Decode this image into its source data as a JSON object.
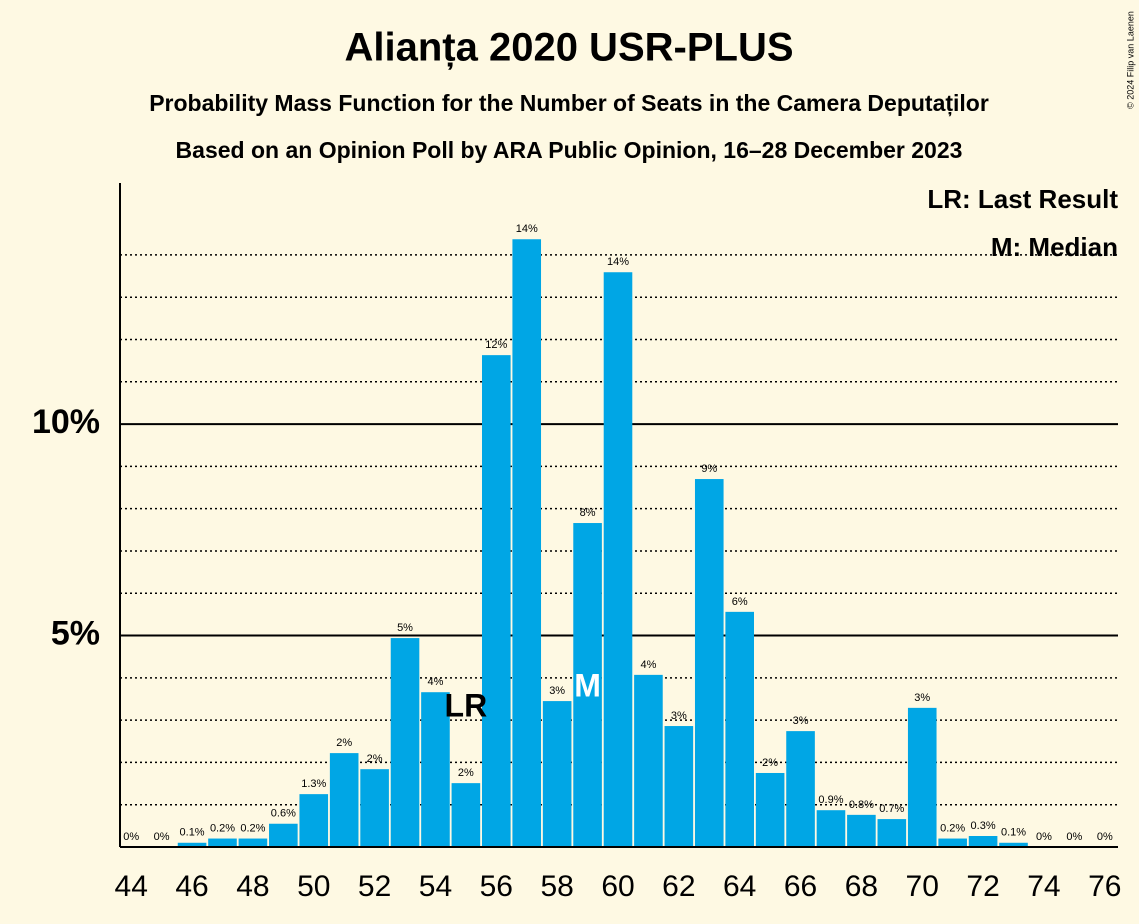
{
  "chart_data": {
    "type": "bar",
    "title": "Alianța 2020 USR-PLUS",
    "subtitle": "Probability Mass Function for the Number of Seats in the Camera Deputaților",
    "subtitle2": "Based on an Opinion Poll by ARA Public Opinion, 16–28 December 2023",
    "copyright": "© 2024 Filip van Laenen",
    "x": [
      44,
      45,
      46,
      47,
      48,
      49,
      50,
      51,
      52,
      53,
      54,
      55,
      56,
      57,
      58,
      59,
      60,
      61,
      62,
      63,
      64,
      65,
      66,
      67,
      68,
      69,
      70,
      71,
      72,
      73,
      74,
      75,
      76
    ],
    "values": [
      0,
      0,
      0.1,
      0.2,
      0.2,
      0.55,
      1.25,
      2.22,
      1.84,
      4.94,
      3.66,
      1.51,
      11.63,
      14.37,
      3.45,
      7.66,
      13.59,
      4.07,
      2.86,
      8.7,
      5.56,
      1.75,
      2.74,
      0.87,
      0.76,
      0.66,
      3.29,
      0.2,
      0.26,
      0.1,
      0,
      0,
      0
    ],
    "value_labels": [
      "0%",
      "0%",
      "0.1%",
      "0.2%",
      "0.2%",
      "0.6%",
      "1.3%",
      "2%",
      "2%",
      "5%",
      "4%",
      "2%",
      "12%",
      "14%",
      "3%",
      "8%",
      "14%",
      "4%",
      "3%",
      "9%",
      "6%",
      "2%",
      "3%",
      "0.9%",
      "0.8%",
      "0.7%",
      "3%",
      "0.2%",
      "0.3%",
      "0.1%",
      "0%",
      "0%",
      "0%"
    ],
    "color": "#00a6e5",
    "xlim": [
      43.5,
      76.5
    ],
    "xticks": [
      44,
      46,
      48,
      50,
      52,
      54,
      56,
      58,
      60,
      62,
      64,
      66,
      68,
      70,
      72,
      74,
      76
    ],
    "ylim": [
      0,
      15.7
    ],
    "yticks": [
      {
        "value": 5,
        "label": "5%"
      },
      {
        "value": 10,
        "label": "10%"
      }
    ],
    "minor_yticks": [
      1,
      2,
      3,
      4,
      6,
      7,
      8,
      9,
      11,
      12,
      13,
      14
    ],
    "grid": true,
    "annotations": [
      {
        "text": "LR",
        "x": 55
      },
      {
        "text": "M",
        "x": 59
      }
    ],
    "legend": [
      "LR: Last Result",
      "M: Median"
    ],
    "legend_position": "top-right"
  }
}
